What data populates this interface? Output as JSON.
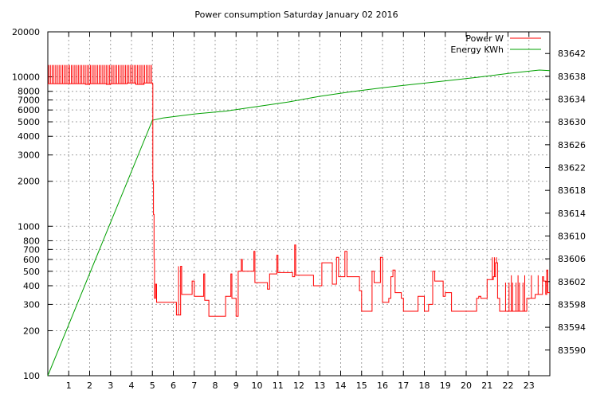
{
  "chart_data": {
    "type": "line",
    "title": "Power consumption Saturday January 02 2016",
    "grid": true,
    "legend_position": "top-right",
    "x": {
      "label": "",
      "range": [
        0,
        24
      ],
      "ticks": [
        1,
        2,
        3,
        4,
        5,
        6,
        7,
        8,
        9,
        10,
        11,
        12,
        13,
        14,
        15,
        16,
        17,
        18,
        19,
        20,
        21,
        22,
        23
      ]
    },
    "y_left": {
      "label": "",
      "scale": "log",
      "range": [
        100,
        20000
      ],
      "ticks": [
        100,
        200,
        300,
        400,
        500,
        600,
        700,
        800,
        1000,
        2000,
        3000,
        4000,
        5000,
        6000,
        7000,
        8000,
        10000,
        20000
      ]
    },
    "y_right": {
      "label": "",
      "scale": "linear",
      "range": [
        83585.5,
        83645.8
      ],
      "ticks": [
        83590,
        83594,
        83598,
        83602,
        83606,
        83610,
        83614,
        83618,
        83622,
        83626,
        83630,
        83634,
        83638,
        83642
      ]
    },
    "series": [
      {
        "name": "Power W",
        "color": "#ff0000",
        "axis": "left",
        "points": [
          [
            0.0,
            9000
          ],
          [
            0.3,
            9000
          ],
          [
            0.8,
            9000
          ],
          [
            1.0,
            9000
          ],
          [
            1.5,
            9000
          ],
          [
            1.8,
            8900
          ],
          [
            2.0,
            9000
          ],
          [
            2.5,
            9000
          ],
          [
            2.8,
            8900
          ],
          [
            3.0,
            9000
          ],
          [
            3.4,
            9000
          ],
          [
            3.8,
            9100
          ],
          [
            4.2,
            8900
          ],
          [
            4.6,
            9100
          ],
          [
            5.0,
            9000
          ],
          [
            5.02,
            2000
          ],
          [
            5.05,
            1200
          ],
          [
            5.08,
            600
          ],
          [
            5.1,
            330
          ],
          [
            5.15,
            410
          ],
          [
            5.2,
            310
          ],
          [
            6.0,
            310
          ],
          [
            6.15,
            255
          ],
          [
            6.3,
            255
          ],
          [
            6.35,
            540
          ],
          [
            6.4,
            350
          ],
          [
            6.8,
            350
          ],
          [
            6.9,
            430
          ],
          [
            7.0,
            340
          ],
          [
            7.4,
            340
          ],
          [
            7.45,
            480
          ],
          [
            7.5,
            320
          ],
          [
            7.7,
            250
          ],
          [
            8.4,
            250
          ],
          [
            8.5,
            340
          ],
          [
            8.7,
            340
          ],
          [
            8.75,
            480
          ],
          [
            8.8,
            330
          ],
          [
            9.0,
            250
          ],
          [
            9.1,
            500
          ],
          [
            9.2,
            500
          ],
          [
            9.25,
            600
          ],
          [
            9.3,
            500
          ],
          [
            9.8,
            500
          ],
          [
            9.85,
            680
          ],
          [
            9.9,
            420
          ],
          [
            10.4,
            420
          ],
          [
            10.5,
            380
          ],
          [
            10.6,
            480
          ],
          [
            10.9,
            480
          ],
          [
            10.95,
            640
          ],
          [
            11.0,
            490
          ],
          [
            11.6,
            490
          ],
          [
            11.7,
            460
          ],
          [
            11.8,
            750
          ],
          [
            11.85,
            470
          ],
          [
            12.6,
            470
          ],
          [
            12.7,
            400
          ],
          [
            13.0,
            400
          ],
          [
            13.1,
            570
          ],
          [
            13.5,
            570
          ],
          [
            13.6,
            410
          ],
          [
            13.7,
            410
          ],
          [
            13.8,
            620
          ],
          [
            13.9,
            460
          ],
          [
            14.1,
            460
          ],
          [
            14.2,
            680
          ],
          [
            14.3,
            460
          ],
          [
            14.8,
            460
          ],
          [
            14.9,
            370
          ],
          [
            15.0,
            270
          ],
          [
            15.4,
            270
          ],
          [
            15.5,
            500
          ],
          [
            15.6,
            420
          ],
          [
            15.8,
            420
          ],
          [
            15.9,
            620
          ],
          [
            16.0,
            310
          ],
          [
            16.3,
            330
          ],
          [
            16.4,
            460
          ],
          [
            16.5,
            510
          ],
          [
            16.6,
            360
          ],
          [
            16.8,
            360
          ],
          [
            16.9,
            330
          ],
          [
            17.0,
            270
          ],
          [
            17.6,
            270
          ],
          [
            17.7,
            340
          ],
          [
            17.9,
            340
          ],
          [
            18.0,
            270
          ],
          [
            18.2,
            300
          ],
          [
            18.4,
            500
          ],
          [
            18.5,
            430
          ],
          [
            18.8,
            430
          ],
          [
            18.9,
            340
          ],
          [
            19.0,
            360
          ],
          [
            19.2,
            360
          ],
          [
            19.3,
            270
          ],
          [
            20.4,
            270
          ],
          [
            20.5,
            330
          ],
          [
            20.6,
            340
          ],
          [
            20.7,
            330
          ],
          [
            20.9,
            330
          ],
          [
            21.0,
            440
          ],
          [
            21.3,
            460
          ],
          [
            21.4,
            570
          ],
          [
            21.5,
            330
          ],
          [
            21.6,
            270
          ],
          [
            22.8,
            270
          ],
          [
            22.9,
            330
          ],
          [
            23.2,
            330
          ],
          [
            23.3,
            350
          ],
          [
            23.6,
            350
          ],
          [
            23.65,
            460
          ],
          [
            23.7,
            430
          ],
          [
            23.8,
            350
          ],
          [
            23.85,
            510
          ],
          [
            23.9,
            360
          ],
          [
            24.0,
            360
          ]
        ],
        "spikes": [
          {
            "range": [
              0.0,
              5.0
            ],
            "top": 12000,
            "count": 60
          },
          {
            "range": [
              6.2,
              6.4
            ],
            "top": 540,
            "count": 2
          },
          {
            "range": [
              10.9,
              11.0
            ],
            "top": 640,
            "count": 1
          },
          {
            "range": [
              21.2,
              21.5
            ],
            "top": 620,
            "count": 3
          },
          {
            "range": [
              21.8,
              22.8
            ],
            "top": 420,
            "count": 6
          },
          {
            "range": [
              22.0,
              23.6
            ],
            "top": 470,
            "count": 5
          }
        ]
      },
      {
        "name": "Energy KWh",
        "color": "#00a000",
        "axis": "right",
        "points": [
          [
            0.0,
            83585.5
          ],
          [
            5.0,
            83630.3
          ],
          [
            5.5,
            83630.7
          ],
          [
            7.0,
            83631.4
          ],
          [
            8.5,
            83631.9
          ],
          [
            10.0,
            83632.7
          ],
          [
            11.5,
            83633.5
          ],
          [
            13.0,
            83634.5
          ],
          [
            14.5,
            83635.3
          ],
          [
            16.0,
            83636.0
          ],
          [
            17.5,
            83636.6
          ],
          [
            19.0,
            83637.2
          ],
          [
            20.5,
            83637.8
          ],
          [
            22.0,
            83638.5
          ],
          [
            23.5,
            83639.1
          ],
          [
            24.0,
            83639.0
          ]
        ]
      }
    ]
  }
}
